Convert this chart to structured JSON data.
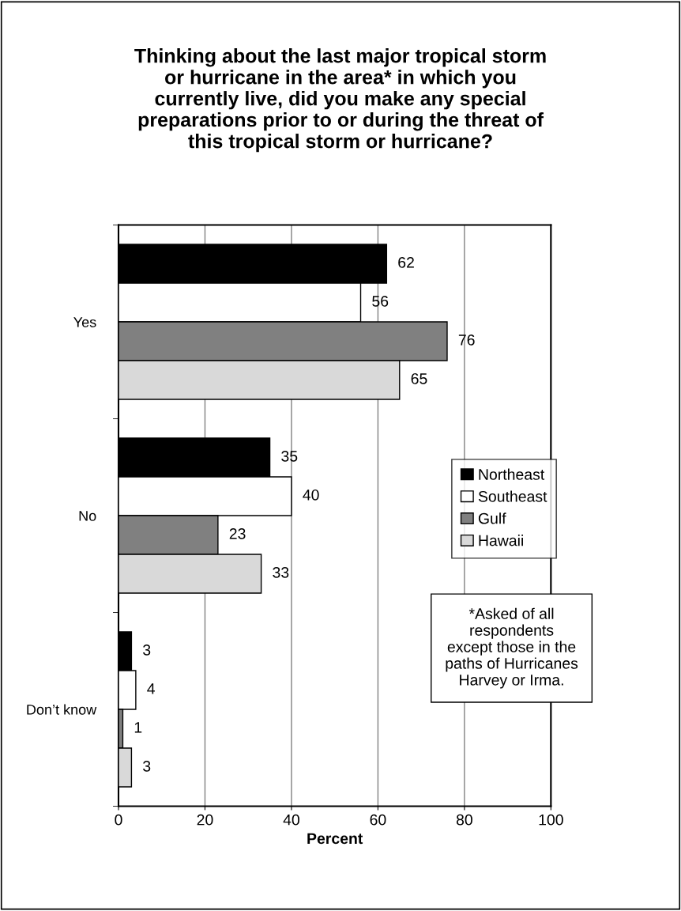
{
  "chart_data": {
    "type": "bar",
    "orientation": "horizontal",
    "title": "Thinking about the last major tropical storm\nor hurricane in the area* in which you\ncurrently live, did you make any special\npreparations prior to or during the threat of\nthis tropical storm or hurricane?",
    "xlabel": "Percent",
    "categories": [
      "Yes",
      "No",
      "Don’t know"
    ],
    "series": [
      {
        "name": "Northeast",
        "color": "#000000",
        "values": [
          62,
          35,
          3
        ]
      },
      {
        "name": "Southeast",
        "color": "#ffffff",
        "values": [
          56,
          40,
          4
        ]
      },
      {
        "name": "Gulf",
        "color": "#808080",
        "values": [
          76,
          23,
          1
        ]
      },
      {
        "name": "Hawaii",
        "color": "#d9d9d9",
        "values": [
          65,
          33,
          3
        ]
      }
    ],
    "xlim": [
      0,
      100
    ],
    "xticks": [
      0,
      20,
      40,
      60,
      80,
      100
    ],
    "grid": "x",
    "legend": "right",
    "data_labels": true,
    "annotations": [
      "*Asked of all\nrespondents\nexcept those in the\npaths of Hurricanes\nHarvey or Irma."
    ]
  }
}
